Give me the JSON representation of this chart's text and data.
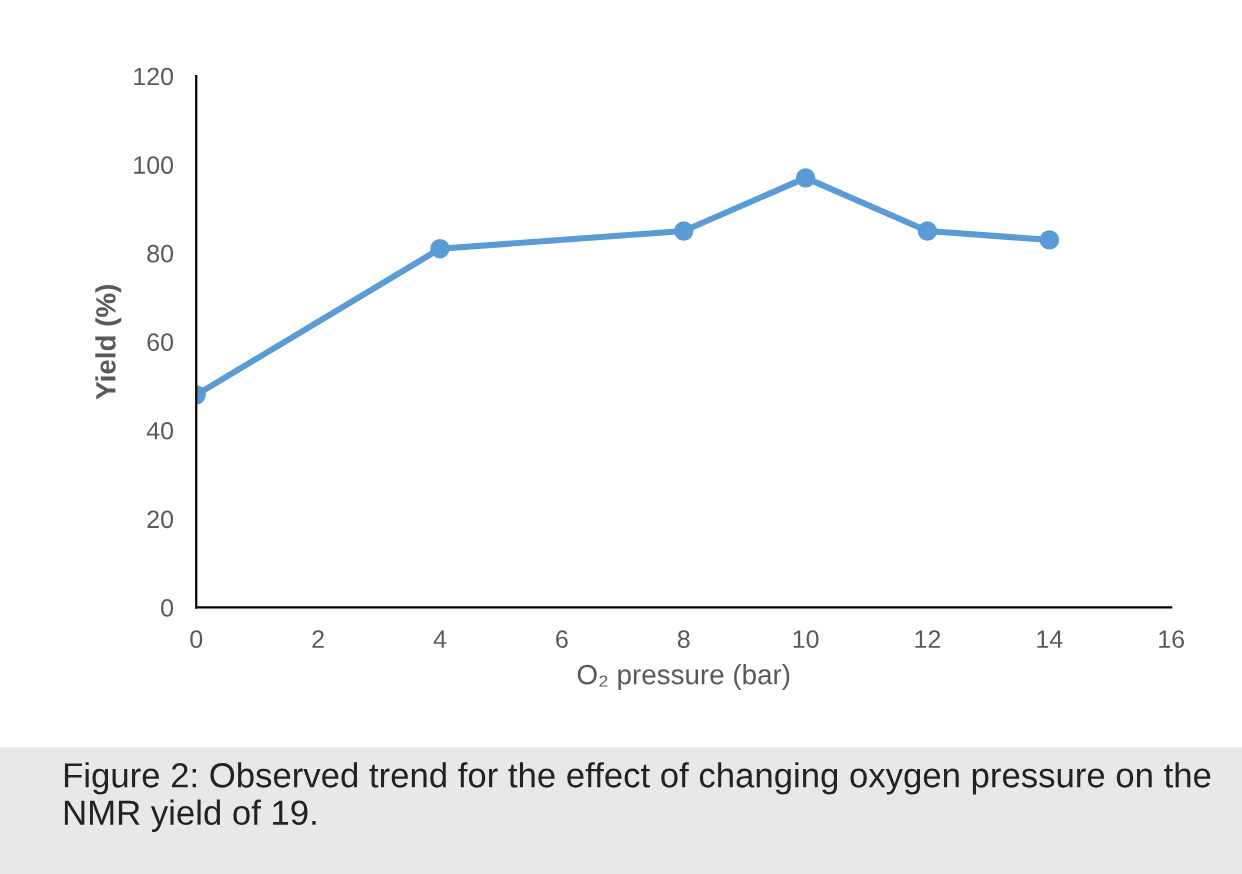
{
  "chart_data": {
    "type": "line",
    "xlabel": "O₂ pressure (bar)",
    "ylabel": "Yield (%)",
    "x": [
      0,
      4,
      8,
      10,
      12,
      14
    ],
    "series": [
      {
        "color": "#5b9bd5",
        "values": [
          48,
          81,
          85,
          97,
          85,
          83
        ]
      }
    ],
    "xlim": [
      0,
      16
    ],
    "xticks": [
      0,
      2,
      4,
      6,
      8,
      10,
      12,
      14,
      16
    ],
    "ylim": [
      0,
      120
    ],
    "yticks": [
      0,
      20,
      40,
      60,
      80,
      100,
      120
    ],
    "marker": "circle",
    "line_style": "solid",
    "grid": false,
    "legend": false,
    "annotations": [
      "Figure 2: Observed trend for the effect of changing oxygen pressure on the NMR yield of 19."
    ]
  }
}
